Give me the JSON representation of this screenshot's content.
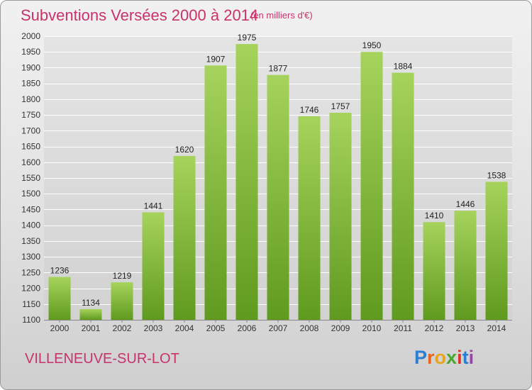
{
  "title": "Subventions Versées 2000 à 2014",
  "subtitle": "(en milliers d'€)",
  "city": "VILLENEUVE-SUR-LOT",
  "logo": {
    "letters": [
      "P",
      "r",
      "o",
      "x",
      "i",
      "t",
      "i"
    ],
    "colors": [
      "#2a7fd4",
      "#e8641c",
      "#e8a51c",
      "#4aa82c",
      "#d9342b",
      "#2a7fd4",
      "#9b3fb5"
    ]
  },
  "colors": {
    "bar_light": "#a6d35c",
    "bar_dark": "#5f9a1e",
    "grid": "#ffffff"
  },
  "chart_data": {
    "type": "bar",
    "categories": [
      "2000",
      "2001",
      "2002",
      "2003",
      "2004",
      "2005",
      "2006",
      "2007",
      "2008",
      "2009",
      "2010",
      "2011",
      "2012",
      "2013",
      "2014"
    ],
    "values": [
      1236,
      1134,
      1219,
      1441,
      1620,
      1907,
      1975,
      1877,
      1746,
      1757,
      1950,
      1884,
      1410,
      1446,
      1538
    ],
    "yticks": [
      1100,
      1150,
      1200,
      1250,
      1300,
      1350,
      1400,
      1450,
      1500,
      1550,
      1600,
      1650,
      1700,
      1750,
      1800,
      1850,
      1900,
      1950,
      2000
    ],
    "ylim": [
      1100,
      2000
    ],
    "grid": true,
    "xlabel": "",
    "ylabel": ""
  }
}
